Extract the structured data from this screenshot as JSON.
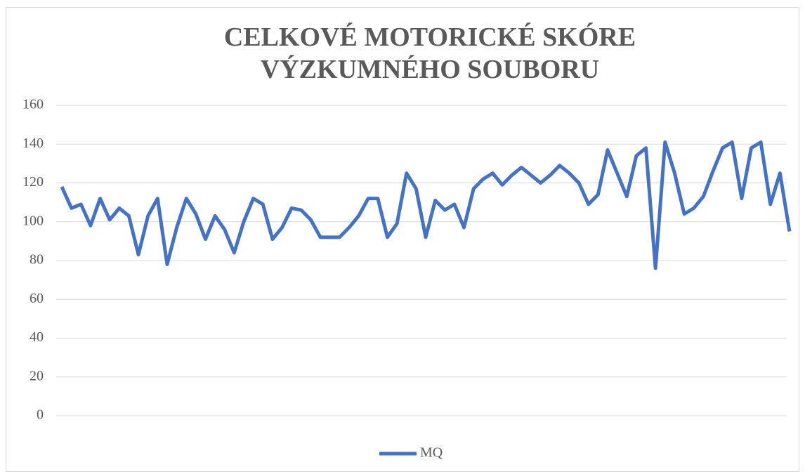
{
  "chart_data": {
    "type": "line",
    "title": "CELKOVÉ MOTORICKÉ SKÓRE VÝZKUMNÉHO SOUBORU",
    "series": [
      {
        "name": "MQ",
        "color": "#4472c4",
        "values": [
          118,
          107,
          109,
          98,
          112,
          101,
          107,
          103,
          83,
          103,
          112,
          78,
          97,
          112,
          104,
          91,
          103,
          96,
          84,
          100,
          112,
          109,
          91,
          97,
          107,
          106,
          101,
          92,
          92,
          92,
          97,
          103,
          112,
          112,
          92,
          99,
          125,
          117,
          92,
          111,
          106,
          109,
          97,
          117,
          122,
          125,
          119,
          124,
          128,
          124,
          120,
          124,
          129,
          125,
          120,
          109,
          114,
          137,
          125,
          113,
          134,
          138,
          76,
          141,
          125,
          104,
          107,
          113,
          126,
          138,
          141,
          112,
          138,
          141,
          109,
          125,
          95
        ]
      }
    ],
    "ylim": [
      0,
      160
    ],
    "yticks": [
      0,
      20,
      40,
      60,
      80,
      100,
      120,
      140,
      160
    ],
    "grid": true,
    "legend": "bottom"
  }
}
